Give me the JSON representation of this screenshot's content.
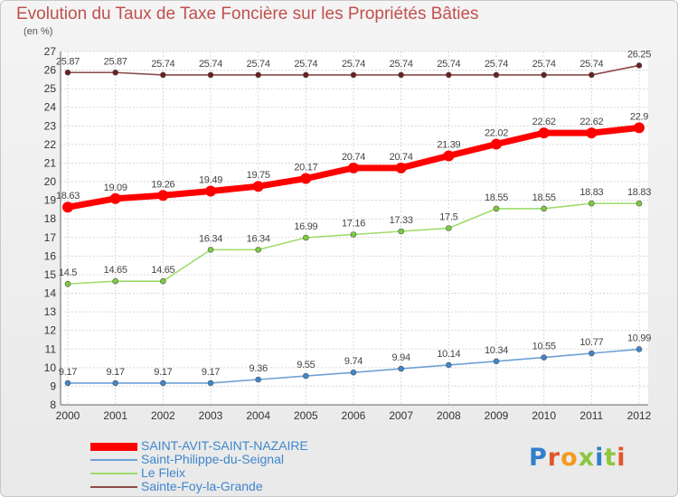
{
  "title": "Evolution du Taux de Taxe Foncière sur les Propriétés Bâties",
  "unit": "(en %)",
  "logo": "Proxiti",
  "chart_data": {
    "type": "line",
    "x": [
      "2000",
      "2001",
      "2002",
      "2003",
      "2004",
      "2005",
      "2006",
      "2007",
      "2008",
      "2009",
      "2010",
      "2011",
      "2012"
    ],
    "ylim": [
      8,
      27
    ],
    "yticks": [
      8,
      9,
      10,
      11,
      12,
      13,
      14,
      15,
      16,
      17,
      18,
      19,
      20,
      21,
      22,
      23,
      24,
      25,
      26,
      27
    ],
    "grid": true,
    "legend_position": "bottom-left",
    "series": [
      {
        "name": "SAINT-AVIT-SAINT-NAZAIRE",
        "color": "#ff0000",
        "point_color": "#ff0000",
        "width": 7,
        "marker": 6,
        "values": [
          18.63,
          19.09,
          19.26,
          19.49,
          19.75,
          20.17,
          20.74,
          20.74,
          21.39,
          22.02,
          22.62,
          22.62,
          22.9
        ],
        "labels": [
          "18.63",
          "19.09",
          "19.26",
          "19.49",
          "19.75",
          "20.17",
          "20.74",
          "20.74",
          "21.39",
          "22.02",
          "22.62",
          "22.62",
          "22.9"
        ]
      },
      {
        "name": "Saint-Philippe-du-Seignal",
        "color": "#6fa1d6",
        "point_color": "#3f86cc",
        "width": 1.6,
        "marker": 3,
        "values": [
          9.17,
          9.17,
          9.17,
          9.17,
          9.36,
          9.55,
          9.74,
          9.94,
          10.14,
          10.34,
          10.55,
          10.77,
          10.99
        ],
        "labels": [
          "9.17",
          "9.17",
          "9.17",
          "9.17",
          "9.36",
          "9.55",
          "9.74",
          "9.94",
          "10.14",
          "10.34",
          "10.55",
          "10.77",
          "10.99"
        ]
      },
      {
        "name": "Le Fleix",
        "color": "#9edc6a",
        "point_color": "#7ccb3d",
        "width": 1.6,
        "marker": 3,
        "values": [
          14.5,
          14.65,
          14.65,
          16.34,
          16.34,
          16.99,
          17.16,
          17.33,
          17.5,
          18.55,
          18.55,
          18.83,
          18.83
        ],
        "labels": [
          "14.5",
          "14.65",
          "14.65",
          "16.34",
          "16.34",
          "16.99",
          "17.16",
          "17.33",
          "17.5",
          "18.55",
          "18.55",
          "18.83",
          "18.83"
        ]
      },
      {
        "name": "Sainte-Foy-la-Grande",
        "color": "#8b4a4a",
        "point_color": "#6b1f1f",
        "width": 1.6,
        "marker": 3,
        "values": [
          25.87,
          25.87,
          25.74,
          25.74,
          25.74,
          25.74,
          25.74,
          25.74,
          25.74,
          25.74,
          25.74,
          25.74,
          26.25
        ],
        "labels": [
          "25.87",
          "25.87",
          "25.74",
          "25.74",
          "25.74",
          "25.74",
          "25.74",
          "25.74",
          "25.74",
          "25.74",
          "25.74",
          "25.74",
          "26.25"
        ]
      }
    ]
  }
}
